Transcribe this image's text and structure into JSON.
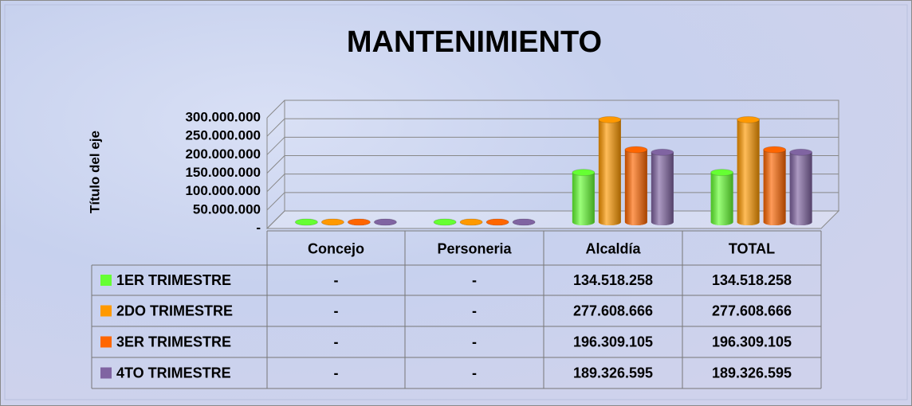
{
  "chart_data": {
    "type": "bar",
    "title": "MANTENIMIENTO",
    "y_label": "Título del eje",
    "categories": [
      "Concejo",
      "Personeria",
      "Alcaldía",
      "TOTAL"
    ],
    "series": [
      {
        "name": "1ER TRIMESTRE",
        "color": "#66ff33",
        "values": [
          0,
          0,
          134518258,
          134518258
        ],
        "value_labels": [
          "-",
          "-",
          "134.518.258",
          "134.518.258"
        ]
      },
      {
        "name": "2DO TRIMESTRE",
        "color": "#ff9900",
        "values": [
          0,
          0,
          277608666,
          277608666
        ],
        "value_labels": [
          "-",
          "-",
          "277.608.666",
          "277.608.666"
        ]
      },
      {
        "name": "3ER TRIMESTRE",
        "color": "#ff6600",
        "values": [
          0,
          0,
          196309105,
          196309105
        ],
        "value_labels": [
          "-",
          "-",
          "196.309.105",
          "196.309.105"
        ]
      },
      {
        "name": "4TO TRIMESTRE",
        "color": "#8064a2",
        "values": [
          0,
          0,
          189326595,
          189326595
        ],
        "value_labels": [
          "-",
          "-",
          "189.326.595",
          "189.326.595"
        ]
      }
    ],
    "ylim": [
      0,
      300000000
    ],
    "yticks": [
      {
        "value": 0,
        "label": "-"
      },
      {
        "value": 50000000,
        "label": "50.000.000"
      },
      {
        "value": 100000000,
        "label": "100.000.000"
      },
      {
        "value": 150000000,
        "label": "150.000.000"
      },
      {
        "value": 200000000,
        "label": "200.000.000"
      },
      {
        "value": 250000000,
        "label": "250.000.000"
      },
      {
        "value": 300000000,
        "label": "300.000.000"
      }
    ],
    "grid": true
  }
}
